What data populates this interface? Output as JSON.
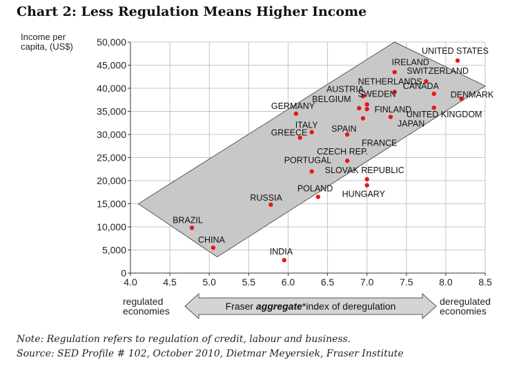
{
  "chart_data": {
    "type": "scatter",
    "title": "Chart 2:  Less Regulation Means Higher Income",
    "ylabel": [
      "Income per",
      "capita, (US$)"
    ],
    "xlim": [
      4.0,
      8.5
    ],
    "ylim": [
      0,
      50000
    ],
    "xticks": [
      "4.0",
      "4.5",
      "5.0",
      "5.5",
      "6.0",
      "6.5",
      "7.0",
      "7.5",
      "8.0",
      "8.5"
    ],
    "yticks": [
      "0",
      "5,000",
      "10,000",
      "15,000",
      "20,000",
      "25,000",
      "30,000",
      "35,000",
      "40,000",
      "45,000",
      "50,000"
    ],
    "xtick_values": [
      4.0,
      4.5,
      5.0,
      5.5,
      6.0,
      6.5,
      7.0,
      7.5,
      8.0,
      8.5
    ],
    "ytick_values": [
      0,
      5000,
      10000,
      15000,
      20000,
      25000,
      30000,
      35000,
      40000,
      45000,
      50000
    ],
    "grid": true,
    "band": [
      [
        4.1,
        15000
      ],
      [
        7.35,
        50000
      ],
      [
        8.5,
        40500
      ],
      [
        5.1,
        3500
      ]
    ],
    "band_color": "#c8c8c8",
    "point_color": "#e8161b",
    "points": [
      {
        "label": "UNITED STATES",
        "x": 8.15,
        "y": 46000
      },
      {
        "label": "IRELAND",
        "x": 7.35,
        "y": 43500
      },
      {
        "label": "SWITZERLAND",
        "x": 7.75,
        "y": 41500
      },
      {
        "label": "NETHERLANDS",
        "x": 7.35,
        "y": 39200
      },
      {
        "label": "AUSTRIA",
        "x": 6.95,
        "y": 38300
      },
      {
        "label": "CANADA",
        "x": 7.85,
        "y": 38800
      },
      {
        "label": "DENMARK",
        "x": 8.2,
        "y": 37700
      },
      {
        "label": "BELGIUM",
        "x": 6.9,
        "y": 35700
      },
      {
        "label": "SWEDEN",
        "x": 7.0,
        "y": 36500
      },
      {
        "label": "FINLAND",
        "x": 7.0,
        "y": 35500
      },
      {
        "label": "GERMANY",
        "x": 6.1,
        "y": 34500
      },
      {
        "label": "UNITED KINGDOM",
        "x": 7.85,
        "y": 35800
      },
      {
        "label": "JAPAN",
        "x": 7.3,
        "y": 33800
      },
      {
        "label": "ITALY",
        "x": 6.3,
        "y": 30500
      },
      {
        "label": "SPAIN",
        "x": 6.75,
        "y": 30000
      },
      {
        "label": "GREECE",
        "x": 6.15,
        "y": 29300
      },
      {
        "label": "FRANCE",
        "x": 6.95,
        "y": 33500
      },
      {
        "label": "CZECH REP.",
        "x": 6.75,
        "y": 24300
      },
      {
        "label": "PORTUGAL",
        "x": 6.3,
        "y": 22000
      },
      {
        "label": "SLOVAK REPUBLIC",
        "x": 7.0,
        "y": 20300
      },
      {
        "label": "HUNGARY",
        "x": 7.0,
        "y": 19000
      },
      {
        "label": "POLAND",
        "x": 6.38,
        "y": 16500
      },
      {
        "label": "RUSSIA",
        "x": 5.78,
        "y": 14800
      },
      {
        "label": "BRAZIL",
        "x": 4.78,
        "y": 9800
      },
      {
        "label": "CHINA",
        "x": 5.05,
        "y": 5500
      },
      {
        "label": "INDIA",
        "x": 5.95,
        "y": 2800
      }
    ],
    "arrow": {
      "left_label": [
        "regulated",
        "economies"
      ],
      "center_label_prefix": "Fraser ",
      "center_label_bold": "aggregate",
      "center_label_suffix": "*index of deregulation",
      "right_label": [
        "deregulated",
        "economies"
      ]
    }
  },
  "notes": {
    "line1": "Note: Regulation refers to regulation of credit, labour and business.",
    "line2": "Source: SED Profile # 102, October 2010, Dietmar Meyersiek, Fraser Institute"
  }
}
